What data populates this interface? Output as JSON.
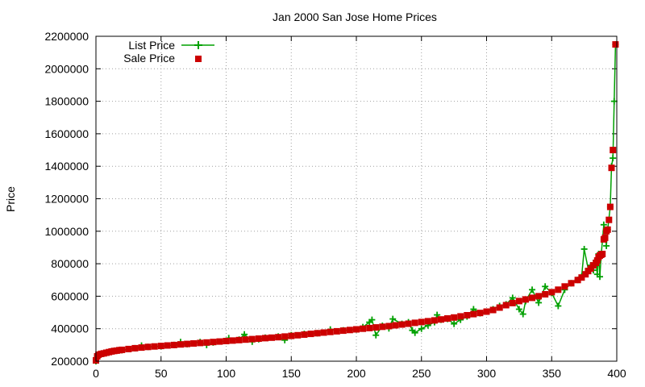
{
  "chart_data": {
    "type": "scatter",
    "title": "Jan 2000 San Jose Home Prices",
    "xlabel": "",
    "ylabel": "Price",
    "xlim": [
      0,
      400
    ],
    "ylim": [
      200000,
      2200000
    ],
    "x_ticks": [
      0,
      50,
      100,
      150,
      200,
      250,
      300,
      350,
      400
    ],
    "x_tick_labels": [
      "0",
      "50",
      "100",
      "150",
      "200",
      "250",
      "300",
      "350",
      "400"
    ],
    "y_ticks": [
      200000,
      400000,
      600000,
      800000,
      1000000,
      1200000,
      1400000,
      1600000,
      1800000,
      2000000,
      2200000
    ],
    "y_tick_labels": [
      "200000",
      "400000",
      "600000",
      "800000",
      "1000000",
      "1200000",
      "1400000",
      "1600000",
      "1800000",
      "2000000",
      "2200000"
    ],
    "grid": true,
    "legend_position": "top-left",
    "series": [
      {
        "name": "List Price",
        "style": "line-with-plus-markers",
        "color": "#00a000",
        "points": [
          [
            0,
            200000
          ],
          [
            1,
            230000
          ],
          [
            5,
            245000
          ],
          [
            10,
            255000
          ],
          [
            20,
            268000
          ],
          [
            30,
            280000
          ],
          [
            35,
            296000
          ],
          [
            40,
            288000
          ],
          [
            50,
            292000
          ],
          [
            60,
            300000
          ],
          [
            65,
            318000
          ],
          [
            70,
            305000
          ],
          [
            80,
            318000
          ],
          [
            85,
            300000
          ],
          [
            90,
            315000
          ],
          [
            100,
            325000
          ],
          [
            102,
            342000
          ],
          [
            110,
            333000
          ],
          [
            114,
            365000
          ],
          [
            120,
            320000
          ],
          [
            125,
            335000
          ],
          [
            130,
            345000
          ],
          [
            140,
            352000
          ],
          [
            145,
            330000
          ],
          [
            150,
            360000
          ],
          [
            160,
            368000
          ],
          [
            170,
            372000
          ],
          [
            180,
            395000
          ],
          [
            190,
            390000
          ],
          [
            200,
            395000
          ],
          [
            205,
            410000
          ],
          [
            210,
            440000
          ],
          [
            212,
            455000
          ],
          [
            215,
            360000
          ],
          [
            220,
            418000
          ],
          [
            225,
            402000
          ],
          [
            228,
            460000
          ],
          [
            235,
            430000
          ],
          [
            240,
            440000
          ],
          [
            243,
            390000
          ],
          [
            245,
            375000
          ],
          [
            250,
            400000
          ],
          [
            255,
            420000
          ],
          [
            260,
            440000
          ],
          [
            262,
            485000
          ],
          [
            265,
            455000
          ],
          [
            270,
            460000
          ],
          [
            275,
            430000
          ],
          [
            280,
            455000
          ],
          [
            285,
            475000
          ],
          [
            290,
            520000
          ],
          [
            295,
            495000
          ],
          [
            300,
            505000
          ],
          [
            305,
            520000
          ],
          [
            310,
            540000
          ],
          [
            315,
            550000
          ],
          [
            320,
            590000
          ],
          [
            325,
            520000
          ],
          [
            328,
            490000
          ],
          [
            330,
            570000
          ],
          [
            335,
            640000
          ],
          [
            340,
            560000
          ],
          [
            345,
            660000
          ],
          [
            350,
            620000
          ],
          [
            355,
            540000
          ],
          [
            360,
            640000
          ],
          [
            365,
            680000
          ],
          [
            370,
            700000
          ],
          [
            373,
            720000
          ],
          [
            375,
            890000
          ],
          [
            378,
            770000
          ],
          [
            380,
            790000
          ],
          [
            382,
            760000
          ],
          [
            384,
            820000
          ],
          [
            385,
            735000
          ],
          [
            386,
            860000
          ],
          [
            387,
            720000
          ],
          [
            388,
            850000
          ],
          [
            390,
            1040000
          ],
          [
            392,
            910000
          ],
          [
            393,
            1010000
          ],
          [
            395,
            1150000
          ],
          [
            396,
            1400000
          ],
          [
            397,
            1450000
          ],
          [
            398,
            1800000
          ],
          [
            399,
            2150000
          ]
        ]
      },
      {
        "name": "Sale Price",
        "style": "square-markers",
        "color": "#cc0000",
        "points": [
          [
            0,
            205000
          ],
          [
            1,
            230000
          ],
          [
            2,
            240000
          ],
          [
            4,
            245000
          ],
          [
            6,
            248000
          ],
          [
            8,
            252000
          ],
          [
            10,
            256000
          ],
          [
            12,
            260000
          ],
          [
            14,
            263000
          ],
          [
            16,
            265000
          ],
          [
            18,
            268000
          ],
          [
            20,
            270000
          ],
          [
            25,
            275000
          ],
          [
            30,
            280000
          ],
          [
            35,
            284000
          ],
          [
            40,
            288000
          ],
          [
            45,
            291000
          ],
          [
            50,
            294000
          ],
          [
            55,
            297000
          ],
          [
            60,
            300000
          ],
          [
            65,
            303000
          ],
          [
            70,
            306000
          ],
          [
            75,
            309000
          ],
          [
            80,
            312000
          ],
          [
            85,
            315000
          ],
          [
            90,
            318000
          ],
          [
            95,
            321000
          ],
          [
            100,
            324000
          ],
          [
            105,
            327000
          ],
          [
            110,
            330000
          ],
          [
            115,
            333000
          ],
          [
            120,
            336000
          ],
          [
            125,
            339000
          ],
          [
            130,
            342000
          ],
          [
            135,
            345000
          ],
          [
            140,
            348000
          ],
          [
            145,
            352000
          ],
          [
            150,
            356000
          ],
          [
            155,
            360000
          ],
          [
            160,
            364000
          ],
          [
            165,
            368000
          ],
          [
            170,
            372000
          ],
          [
            175,
            376000
          ],
          [
            180,
            380000
          ],
          [
            185,
            384000
          ],
          [
            190,
            388000
          ],
          [
            195,
            392000
          ],
          [
            200,
            396000
          ],
          [
            205,
            400000
          ],
          [
            210,
            404000
          ],
          [
            215,
            408000
          ],
          [
            220,
            412000
          ],
          [
            225,
            416000
          ],
          [
            230,
            421000
          ],
          [
            235,
            426000
          ],
          [
            240,
            431000
          ],
          [
            245,
            436000
          ],
          [
            250,
            441000
          ],
          [
            255,
            446000
          ],
          [
            260,
            451000
          ],
          [
            265,
            457000
          ],
          [
            270,
            463000
          ],
          [
            275,
            469000
          ],
          [
            280,
            476000
          ],
          [
            285,
            483000
          ],
          [
            290,
            490000
          ],
          [
            295,
            497000
          ],
          [
            300,
            505000
          ],
          [
            305,
            515000
          ],
          [
            310,
            530000
          ],
          [
            315,
            545000
          ],
          [
            320,
            558000
          ],
          [
            325,
            570000
          ],
          [
            330,
            580000
          ],
          [
            335,
            590000
          ],
          [
            340,
            600000
          ],
          [
            345,
            612000
          ],
          [
            350,
            625000
          ],
          [
            355,
            640000
          ],
          [
            360,
            660000
          ],
          [
            365,
            680000
          ],
          [
            370,
            700000
          ],
          [
            373,
            715000
          ],
          [
            376,
            735000
          ],
          [
            378,
            755000
          ],
          [
            380,
            770000
          ],
          [
            382,
            790000
          ],
          [
            384,
            805000
          ],
          [
            385,
            820000
          ],
          [
            386,
            840000
          ],
          [
            387,
            850000
          ],
          [
            388,
            855000
          ],
          [
            389,
            860000
          ],
          [
            390,
            950000
          ],
          [
            391,
            960000
          ],
          [
            392,
            1000000
          ],
          [
            393,
            1010000
          ],
          [
            394,
            1070000
          ],
          [
            395,
            1150000
          ],
          [
            396,
            1390000
          ],
          [
            397,
            1500000
          ],
          [
            399,
            2150000
          ]
        ]
      }
    ]
  }
}
